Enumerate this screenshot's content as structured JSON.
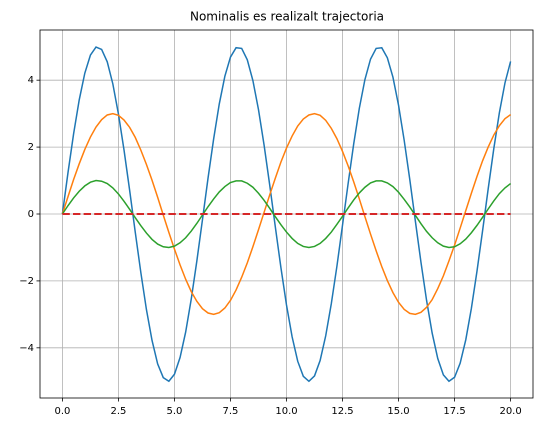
{
  "chart_data": {
    "type": "line",
    "title": "Nominalis es realizalt trajectoria",
    "x": [
      0,
      0.25,
      0.5,
      0.75,
      1,
      1.25,
      1.5,
      1.75,
      2,
      2.25,
      2.5,
      2.75,
      3,
      3.25,
      3.5,
      3.75,
      4,
      4.25,
      4.5,
      4.75,
      5,
      5.25,
      5.5,
      5.75,
      6,
      6.25,
      6.5,
      6.75,
      7,
      7.25,
      7.5,
      7.75,
      8,
      8.25,
      8.5,
      8.75,
      9,
      9.25,
      9.5,
      9.75,
      10,
      10.25,
      10.5,
      10.75,
      11,
      11.25,
      11.5,
      11.75,
      12,
      12.25,
      12.5,
      12.75,
      13,
      13.25,
      13.5,
      13.75,
      14,
      14.25,
      14.5,
      14.75,
      15,
      15.25,
      15.5,
      15.75,
      16,
      16.25,
      16.5,
      16.75,
      17,
      17.25,
      17.5,
      17.75,
      18,
      18.25,
      18.5,
      18.75,
      19,
      19.25,
      19.5,
      19.75,
      20
    ],
    "series": [
      {
        "color": "#1f77b4",
        "values": [
          0,
          1.24,
          2.4,
          3.41,
          4.21,
          4.75,
          4.99,
          4.92,
          4.55,
          3.89,
          2.99,
          1.91,
          0.71,
          -0.54,
          -1.75,
          -2.86,
          -3.78,
          -4.48,
          -4.89,
          -5.0,
          -4.79,
          -4.29,
          -3.53,
          -2.54,
          -1.4,
          -0.17,
          1.08,
          2.25,
          3.29,
          4.12,
          4.69,
          4.97,
          4.95,
          4.61,
          3.99,
          3.12,
          2.06,
          0.87,
          -0.38,
          -1.6,
          -2.72,
          -3.67,
          -4.4,
          -4.85,
          -5.0,
          -4.84,
          -4.38,
          -3.64,
          -2.68,
          -1.56,
          -0.33,
          0.91,
          2.1,
          3.16,
          4.02,
          4.63,
          4.95,
          4.97,
          4.67,
          4.09,
          3.25,
          2.21,
          1.04,
          -0.21,
          -1.44,
          -2.58,
          -3.56,
          -4.32,
          -4.81,
          -5.0,
          -4.88,
          -4.46,
          -3.76,
          -2.82,
          -1.71,
          -0.5,
          0.75,
          1.95,
          3.03,
          3.92,
          4.56
        ]
      },
      {
        "color": "#ff7f0e",
        "values": [
          0,
          0.52,
          1.03,
          1.5,
          1.93,
          2.3,
          2.6,
          2.82,
          2.96,
          3.0,
          2.95,
          2.81,
          2.59,
          2.29,
          1.91,
          1.48,
          1.01,
          0.5,
          -0.03,
          -0.55,
          -1.05,
          -1.52,
          -1.95,
          -2.32,
          -2.61,
          -2.83,
          -2.96,
          -3.0,
          -2.95,
          -2.81,
          -2.58,
          -2.27,
          -1.89,
          -1.46,
          -0.98,
          -0.47,
          0.05,
          0.57,
          1.07,
          1.55,
          1.97,
          2.33,
          2.63,
          2.84,
          2.96,
          3.0,
          2.95,
          2.8,
          2.56,
          2.25,
          1.87,
          1.44,
          0.96,
          0.45,
          -0.08,
          -0.6,
          -1.1,
          -1.57,
          -1.99,
          -2.35,
          -2.64,
          -2.85,
          -2.97,
          -3.0,
          -2.94,
          -2.79,
          -2.56,
          -2.23,
          -1.85,
          -1.4,
          -0.93,
          -0.42,
          0.1,
          0.62,
          1.12,
          1.59,
          2.0,
          2.36,
          2.64,
          2.85,
          2.97
        ]
      },
      {
        "color": "#2ca02c",
        "values": [
          0,
          0.25,
          0.48,
          0.68,
          0.84,
          0.95,
          1.0,
          0.98,
          0.91,
          0.78,
          0.6,
          0.38,
          0.14,
          -0.11,
          -0.35,
          -0.57,
          -0.76,
          -0.9,
          -0.98,
          -1.0,
          -0.96,
          -0.86,
          -0.71,
          -0.51,
          -0.28,
          -0.03,
          0.22,
          0.45,
          0.66,
          0.82,
          0.94,
          0.99,
          0.99,
          0.92,
          0.8,
          0.62,
          0.41,
          0.17,
          -0.08,
          -0.32,
          -0.54,
          -0.73,
          -0.88,
          -0.97,
          -1.0,
          -0.97,
          -0.88,
          -0.73,
          -0.54,
          -0.31,
          -0.07,
          0.18,
          0.42,
          0.63,
          0.8,
          0.93,
          0.99,
          0.99,
          0.93,
          0.82,
          0.65,
          0.44,
          0.21,
          -0.04,
          -0.29,
          -0.52,
          -0.71,
          -0.86,
          -0.96,
          -1.0,
          -0.98,
          -0.89,
          -0.75,
          -0.56,
          -0.34,
          -0.1,
          0.15,
          0.39,
          0.61,
          0.78,
          0.91
        ]
      },
      {
        "color": "#d62728",
        "dashed": true,
        "values": [
          0,
          0,
          0,
          0,
          0,
          0,
          0,
          0,
          0,
          0,
          0,
          0,
          0,
          0,
          0,
          0,
          0,
          0,
          0,
          0,
          0,
          0,
          0,
          0,
          0,
          0,
          0,
          0,
          0,
          0,
          0,
          0,
          0,
          0,
          0,
          0,
          0,
          0,
          0,
          0,
          0,
          0,
          0,
          0,
          0,
          0,
          0,
          0,
          0,
          0,
          0,
          0,
          0,
          0,
          0,
          0,
          0,
          0,
          0,
          0,
          0,
          0,
          0,
          0,
          0,
          0,
          0,
          0,
          0,
          0,
          0,
          0,
          0,
          0,
          0,
          0,
          0,
          0,
          0,
          0,
          0
        ]
      }
    ],
    "xlim": [
      -1,
      21
    ],
    "xticks": [
      {
        "value": 0,
        "label": "0.0"
      },
      {
        "value": 2.5,
        "label": "2.5"
      },
      {
        "value": 5,
        "label": "5.0"
      },
      {
        "value": 7.5,
        "label": "7.5"
      },
      {
        "value": 10,
        "label": "10.0"
      },
      {
        "value": 12.5,
        "label": "12.5"
      },
      {
        "value": 15,
        "label": "15.0"
      },
      {
        "value": 17.5,
        "label": "17.5"
      },
      {
        "value": 20,
        "label": "20.0"
      }
    ],
    "ylim": [
      -5.5,
      5.5
    ],
    "yticks": [
      {
        "value": -4,
        "label": "−4"
      },
      {
        "value": -2,
        "label": "−2"
      },
      0,
      2,
      4
    ],
    "grid": true
  }
}
